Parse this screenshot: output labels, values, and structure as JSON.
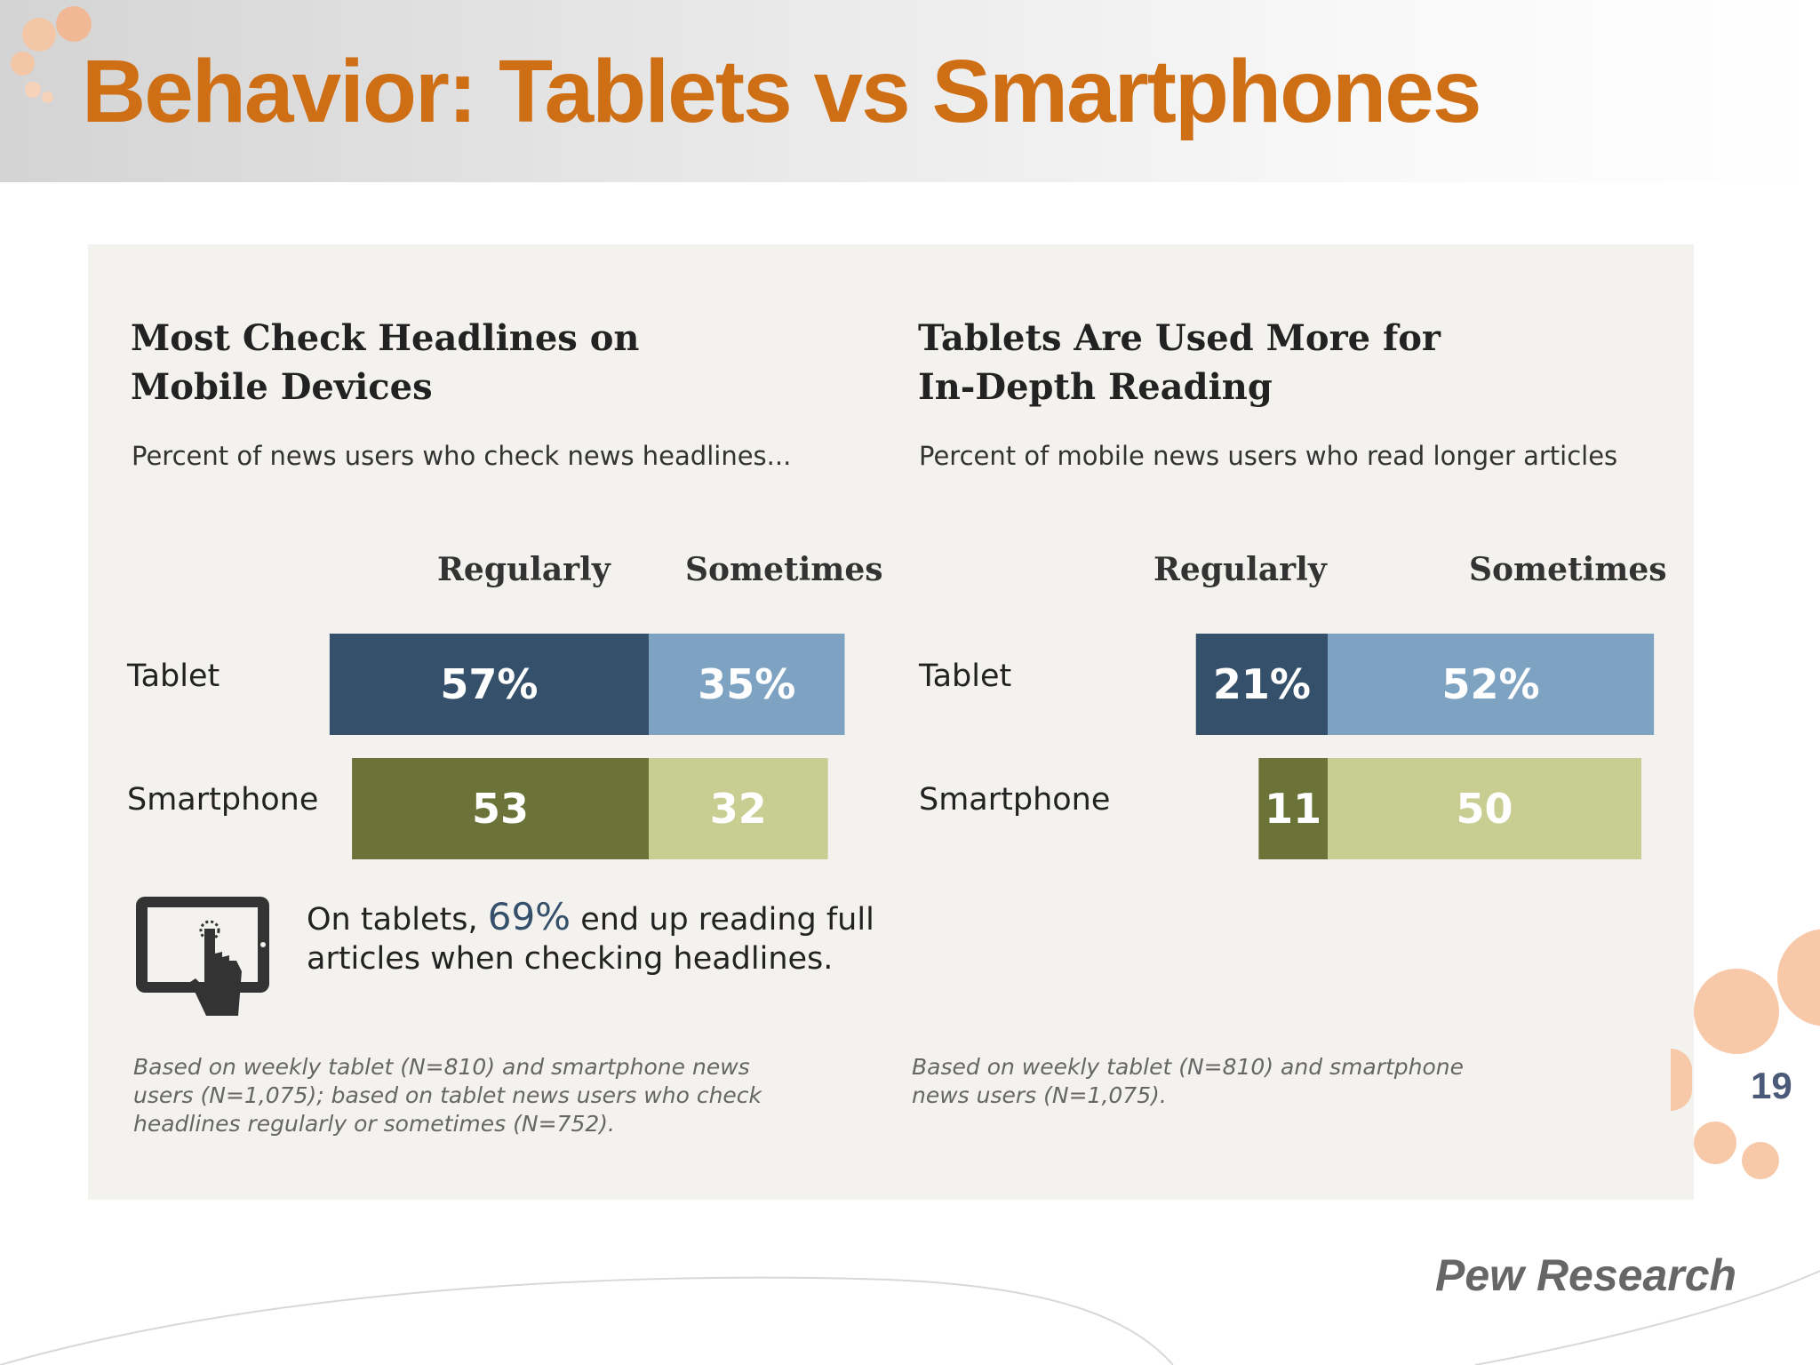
{
  "slide": {
    "title": "Behavior: Tablets vs Smartphones",
    "page_number": "19",
    "source": "Pew Research",
    "accent_color": "#cf6f15"
  },
  "callout": {
    "prefix": "On tablets, ",
    "value": "69%",
    "line1_suffix": " end up reading full",
    "line2": "articles when checking headlines.",
    "icon": "tablet-touch-icon"
  },
  "chart_data": [
    {
      "type": "bar",
      "orientation": "horizontal",
      "stacked": true,
      "title_lines": [
        "Most Check Headlines on",
        "Mobile Devices"
      ],
      "subtitle": "Percent of news users who check news headlines...",
      "legend": [
        "Regularly",
        "Sometimes"
      ],
      "categories": [
        "Tablet",
        "Smartphone"
      ],
      "series": [
        {
          "name": "Regularly",
          "values": [
            57,
            53
          ],
          "labels": [
            "57%",
            "53"
          ],
          "colors": [
            "#34506b",
            "#6b7338"
          ]
        },
        {
          "name": "Sometimes",
          "values": [
            35,
            32
          ],
          "labels": [
            "35%",
            "32"
          ],
          "colors": [
            "#7ea3c2",
            "#c8cd91"
          ]
        }
      ],
      "footnote_lines": [
        "Based on weekly tablet (N=810) and smartphone news",
        "users (N=1,075); based on tablet news users who check",
        "headlines regularly or sometimes (N=752)."
      ]
    },
    {
      "type": "bar",
      "orientation": "horizontal",
      "stacked": true,
      "title_lines": [
        "Tablets Are Used More for",
        "In-Depth Reading"
      ],
      "subtitle": "Percent of mobile news users who read longer articles",
      "legend": [
        "Regularly",
        "Sometimes"
      ],
      "categories": [
        "Tablet",
        "Smartphone"
      ],
      "series": [
        {
          "name": "Regularly",
          "values": [
            21,
            11
          ],
          "labels": [
            "21%",
            "11"
          ],
          "colors": [
            "#34506b",
            "#6b7338"
          ]
        },
        {
          "name": "Sometimes",
          "values": [
            52,
            50
          ],
          "labels": [
            "52%",
            "50"
          ],
          "colors": [
            "#7ea3c2",
            "#c8cd91"
          ]
        }
      ],
      "footnote_lines": [
        "Based on weekly tablet (N=810) and smartphone",
        "news users (N=1,075)."
      ]
    }
  ]
}
